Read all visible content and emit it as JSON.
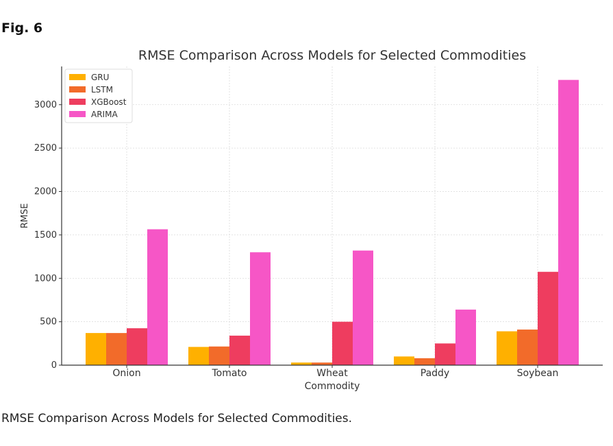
{
  "figure": {
    "label": "Fig. 6",
    "caption": "RMSE Comparison Across Models for Selected Commodities."
  },
  "chart_data": {
    "type": "bar",
    "title": "RMSE Comparison Across Models for Selected Commodities",
    "xlabel": "Commodity",
    "ylabel": "RMSE",
    "categories": [
      "Onion",
      "Tomato",
      "Wheat",
      "Paddy",
      "Soybean"
    ],
    "series": [
      {
        "name": "GRU",
        "color": "#FFB000",
        "values": [
          370,
          210,
          30,
          100,
          390
        ]
      },
      {
        "name": "LSTM",
        "color": "#F26B2A",
        "values": [
          370,
          215,
          30,
          80,
          410
        ]
      },
      {
        "name": "XGBoost",
        "color": "#EE3D5F",
        "values": [
          425,
          340,
          500,
          250,
          1075
        ]
      },
      {
        "name": "ARIMA",
        "color": "#F656C6",
        "values": [
          1565,
          1300,
          1320,
          640,
          3285
        ]
      }
    ],
    "ylim": [
      0,
      3440
    ],
    "yticks": [
      0,
      500,
      1000,
      1500,
      2000,
      2500,
      3000
    ],
    "grid": true,
    "legend_position": "top-left"
  }
}
